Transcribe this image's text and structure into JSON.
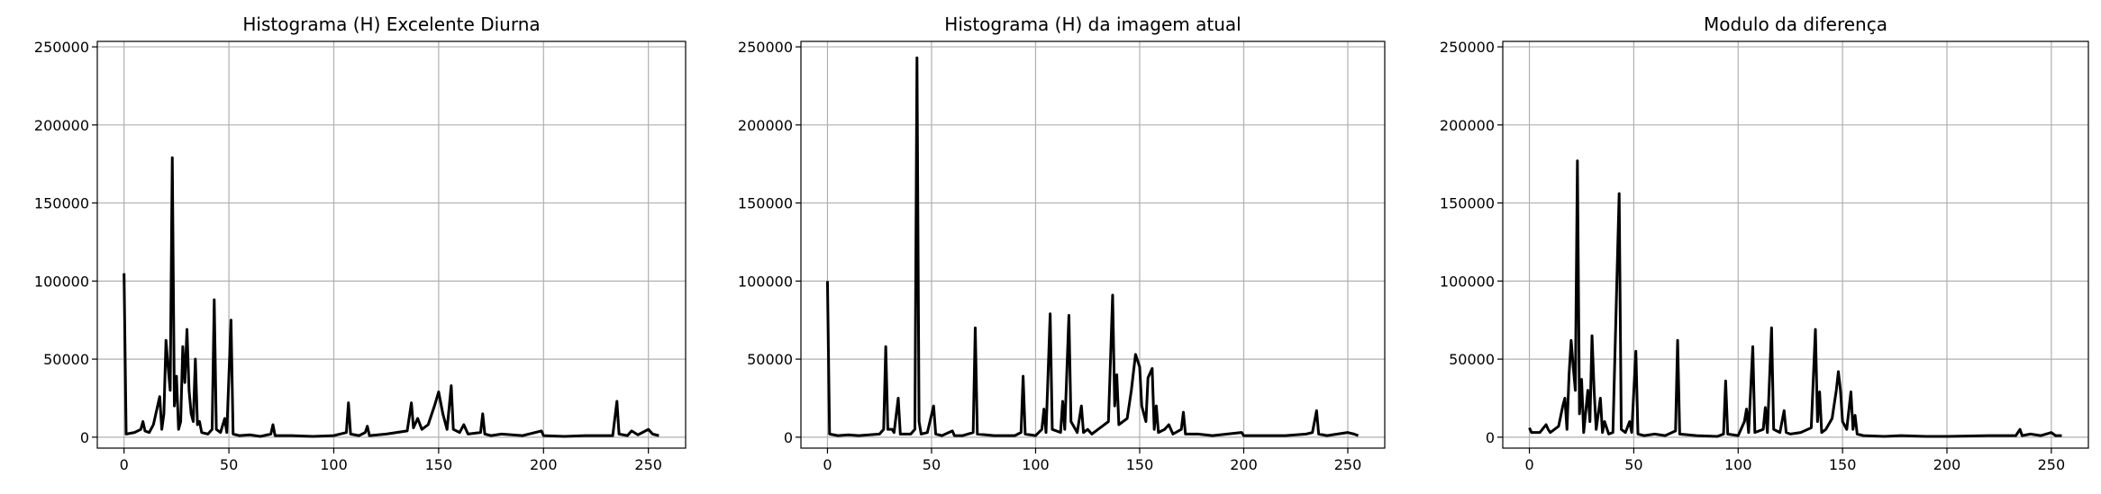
{
  "chart_data": [
    {
      "type": "line",
      "title": "Histograma (H) Excelente Diurna",
      "color": "#000000",
      "grid": true,
      "xlim": [
        -12.75,
        267.75
      ],
      "ylim": [
        -7000,
        253500
      ],
      "xticks": [
        0,
        50,
        100,
        150,
        200,
        250
      ],
      "yticks": [
        0,
        50000,
        100000,
        150000,
        200000,
        250000
      ],
      "x": [
        0,
        1,
        5,
        8,
        9,
        10,
        12,
        14,
        16,
        17,
        18,
        19,
        20,
        21,
        22,
        23,
        24,
        25,
        26,
        27,
        28,
        29,
        30,
        31,
        32,
        33,
        34,
        35,
        36,
        37,
        40,
        42,
        43,
        44,
        46,
        48,
        49,
        51,
        52,
        55,
        60,
        65,
        70,
        71,
        72,
        80,
        90,
        100,
        106,
        107,
        108,
        112,
        115,
        116,
        117,
        125,
        130,
        135,
        137,
        138,
        140,
        142,
        145,
        148,
        150,
        152,
        154,
        156,
        157,
        160,
        162,
        164,
        170,
        171,
        172,
        175,
        180,
        190,
        199,
        200,
        210,
        220,
        233,
        235,
        236,
        240,
        242,
        245,
        250,
        252,
        255
      ],
      "values": [
        105000,
        2000,
        3000,
        5000,
        10000,
        4000,
        3000,
        8000,
        20000,
        26000,
        5000,
        15000,
        62000,
        45000,
        30000,
        179000,
        20000,
        39000,
        5000,
        10000,
        58000,
        35000,
        69000,
        30000,
        15000,
        10000,
        50000,
        8000,
        10000,
        3000,
        2000,
        5000,
        88000,
        5000,
        3000,
        12000,
        3000,
        75000,
        2000,
        1000,
        1500,
        500,
        2000,
        8000,
        1000,
        1000,
        500,
        1000,
        3000,
        22000,
        2000,
        1000,
        3000,
        7000,
        1000,
        2000,
        3000,
        4000,
        22000,
        6000,
        12000,
        5000,
        8000,
        20000,
        29000,
        15000,
        5000,
        33000,
        5000,
        3000,
        8000,
        2000,
        3000,
        15000,
        2000,
        1000,
        2000,
        1000,
        4000,
        1000,
        500,
        1000,
        1000,
        23000,
        2000,
        1000,
        4000,
        1500,
        5000,
        2000,
        1000
      ]
    },
    {
      "type": "line",
      "title": "Histograma (H) da imagem atual",
      "color": "#000000",
      "grid": true,
      "xlim": [
        -12.75,
        267.75
      ],
      "ylim": [
        -7000,
        253500
      ],
      "xticks": [
        0,
        50,
        100,
        150,
        200,
        250
      ],
      "yticks": [
        0,
        50000,
        100000,
        150000,
        200000,
        250000
      ],
      "x": [
        0,
        1,
        5,
        10,
        15,
        20,
        25,
        27,
        28,
        29,
        31,
        32,
        34,
        35,
        40,
        42,
        43,
        44,
        45,
        48,
        51,
        52,
        55,
        60,
        61,
        65,
        70,
        71,
        72,
        80,
        90,
        93,
        94,
        95,
        100,
        103,
        104,
        105,
        107,
        108,
        112,
        113,
        114,
        116,
        117,
        120,
        122,
        123,
        125,
        127,
        130,
        135,
        137,
        138,
        139,
        140,
        142,
        144,
        146,
        148,
        150,
        151,
        153,
        154,
        156,
        157,
        158,
        159,
        162,
        164,
        166,
        170,
        171,
        172,
        178,
        185,
        199,
        200,
        210,
        220,
        230,
        233,
        235,
        236,
        240,
        245,
        250,
        253,
        255
      ],
      "values": [
        100000,
        2000,
        1000,
        1500,
        1000,
        1500,
        2000,
        5000,
        58000,
        5000,
        5000,
        3000,
        25000,
        2000,
        2000,
        5000,
        243000,
        10000,
        2000,
        3000,
        20000,
        2000,
        1000,
        4000,
        1000,
        1000,
        3000,
        70000,
        2000,
        1000,
        1000,
        3000,
        39000,
        2000,
        1000,
        5000,
        18000,
        3000,
        79000,
        5000,
        3000,
        23000,
        5000,
        78000,
        10000,
        3000,
        20000,
        3000,
        5000,
        2000,
        5000,
        10000,
        91000,
        20000,
        40000,
        8000,
        10000,
        12000,
        30000,
        53000,
        45000,
        20000,
        10000,
        38000,
        44000,
        5000,
        20000,
        3000,
        5000,
        8000,
        2000,
        5000,
        16000,
        2000,
        2000,
        1000,
        3000,
        1000,
        1000,
        1000,
        2000,
        3000,
        17000,
        2000,
        1000,
        2000,
        3000,
        2000,
        1000
      ]
    },
    {
      "type": "line",
      "title": "Modulo da diferença",
      "color": "#000000",
      "grid": true,
      "xlim": [
        -12.75,
        267.75
      ],
      "ylim": [
        -7000,
        253500
      ],
      "xticks": [
        0,
        50,
        100,
        150,
        200,
        250
      ],
      "yticks": [
        0,
        50000,
        100000,
        150000,
        200000,
        250000
      ],
      "x": [
        0,
        1,
        5,
        8,
        9,
        10,
        14,
        16,
        17,
        18,
        19,
        20,
        21,
        22,
        23,
        24,
        25,
        26,
        28,
        29,
        30,
        31,
        32,
        34,
        35,
        36,
        38,
        40,
        43,
        44,
        46,
        48,
        49,
        51,
        52,
        55,
        60,
        65,
        70,
        71,
        72,
        80,
        90,
        93,
        94,
        95,
        100,
        103,
        104,
        105,
        107,
        108,
        112,
        113,
        114,
        116,
        117,
        120,
        122,
        123,
        125,
        130,
        135,
        137,
        138,
        139,
        140,
        142,
        145,
        147,
        148,
        149,
        150,
        152,
        154,
        155,
        156,
        157,
        160,
        170,
        178,
        190,
        200,
        220,
        233,
        235,
        236,
        240,
        245,
        250,
        252,
        255
      ],
      "values": [
        6000,
        3000,
        3000,
        8000,
        5000,
        3000,
        7000,
        20000,
        25000,
        5000,
        40000,
        62000,
        45000,
        30000,
        177000,
        15000,
        37000,
        3000,
        30000,
        10000,
        65000,
        30000,
        5000,
        25000,
        3000,
        10000,
        2000,
        3000,
        156000,
        5000,
        3000,
        10000,
        3000,
        55000,
        2000,
        1000,
        2000,
        1000,
        4000,
        62000,
        2000,
        1000,
        500,
        2000,
        36000,
        2000,
        1000,
        10000,
        18000,
        3000,
        58000,
        3000,
        5000,
        19000,
        3000,
        70000,
        5000,
        3000,
        17000,
        3000,
        2000,
        3000,
        6000,
        69000,
        10000,
        29000,
        3000,
        5000,
        12000,
        30000,
        42000,
        30000,
        10000,
        5000,
        29000,
        5000,
        14000,
        2000,
        1000,
        500,
        1000,
        500,
        500,
        1000,
        1000,
        5000,
        1000,
        2000,
        1000,
        3000,
        1000,
        1000
      ]
    }
  ]
}
